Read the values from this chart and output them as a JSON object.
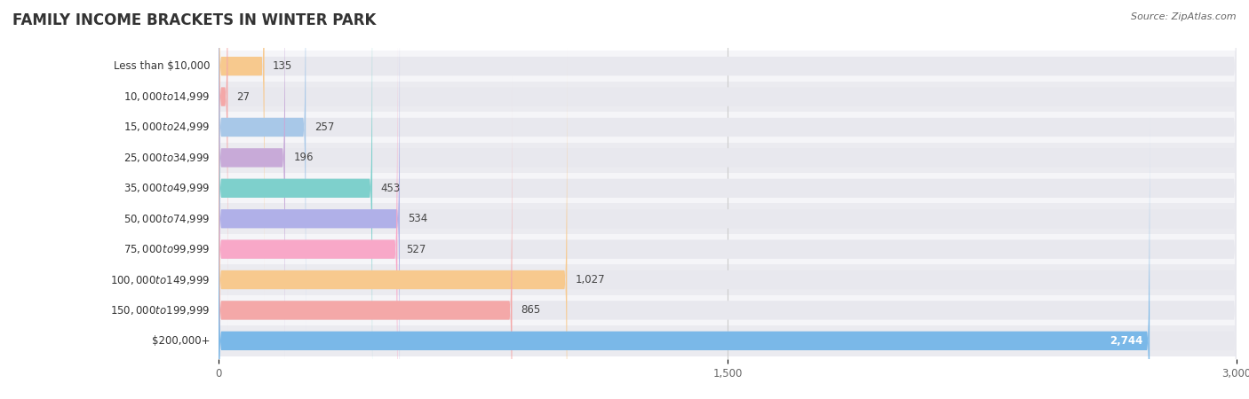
{
  "title": "FAMILY INCOME BRACKETS IN WINTER PARK",
  "source": "Source: ZipAtlas.com",
  "categories": [
    "Less than $10,000",
    "$10,000 to $14,999",
    "$15,000 to $24,999",
    "$25,000 to $34,999",
    "$35,000 to $49,999",
    "$50,000 to $74,999",
    "$75,000 to $99,999",
    "$100,000 to $149,999",
    "$150,000 to $199,999",
    "$200,000+"
  ],
  "values": [
    135,
    27,
    257,
    196,
    453,
    534,
    527,
    1027,
    865,
    2744
  ],
  "bar_colors": [
    "#f7c98e",
    "#f4a8a8",
    "#a8c8e8",
    "#c8aad8",
    "#7ed0cc",
    "#b0b0e8",
    "#f8a8c8",
    "#f7c98e",
    "#f4a8a8",
    "#7ab8e8"
  ],
  "xlim": [
    0,
    3000
  ],
  "xticks": [
    0,
    1500,
    3000
  ],
  "xtick_labels": [
    "0",
    "1,500",
    "3,000"
  ],
  "value_labels": [
    "135",
    "27",
    "257",
    "196",
    "453",
    "534",
    "527",
    "1,027",
    "865",
    "2,744"
  ],
  "bar_bg_color": "#e8e8ee",
  "title_fontsize": 12,
  "label_fontsize": 8.5,
  "value_fontsize": 8.5,
  "last_bar_label_color": "#ffffff",
  "row_bg_colors": [
    "#f5f5f8",
    "#ebebf0"
  ],
  "bar_height": 0.62
}
